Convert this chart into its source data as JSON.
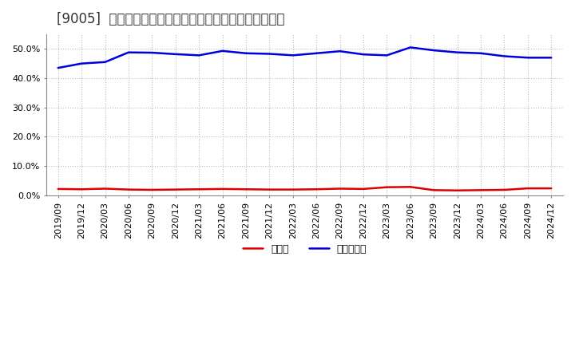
{
  "title": "[9005]  現須金、有利子負債の総資産に対する比率の推移",
  "labels": [
    "2019/09",
    "2019/12",
    "2020/03",
    "2020/06",
    "2020/09",
    "2020/12",
    "2021/03",
    "2021/06",
    "2021/09",
    "2021/12",
    "2022/03",
    "2022/06",
    "2022/09",
    "2022/12",
    "2023/03",
    "2023/06",
    "2023/09",
    "2023/12",
    "2024/03",
    "2024/06",
    "2024/09",
    "2024/12"
  ],
  "cash": [
    2.2,
    2.1,
    2.3,
    2.0,
    1.9,
    2.0,
    2.1,
    2.2,
    2.1,
    2.0,
    2.0,
    2.1,
    2.3,
    2.2,
    2.8,
    2.9,
    1.8,
    1.7,
    1.8,
    1.9,
    2.4,
    2.4
  ],
  "debt": [
    43.5,
    45.0,
    45.5,
    48.8,
    48.7,
    48.2,
    47.8,
    49.3,
    48.5,
    48.3,
    47.8,
    48.5,
    49.2,
    48.1,
    47.8,
    50.5,
    49.5,
    48.8,
    48.5,
    47.5,
    47.0,
    47.0
  ],
  "cash_color": "#dd0000",
  "debt_color": "#0000dd",
  "background_color": "#ffffff",
  "plot_bg_color": "#ffffff",
  "grid_color": "#bbbbbb",
  "ylim": [
    0,
    55
  ],
  "yticks": [
    0.0,
    10.0,
    20.0,
    30.0,
    40.0,
    50.0
  ],
  "legend_cash": "現須金",
  "legend_debt": "有利子負債",
  "title_fontsize": 12
}
